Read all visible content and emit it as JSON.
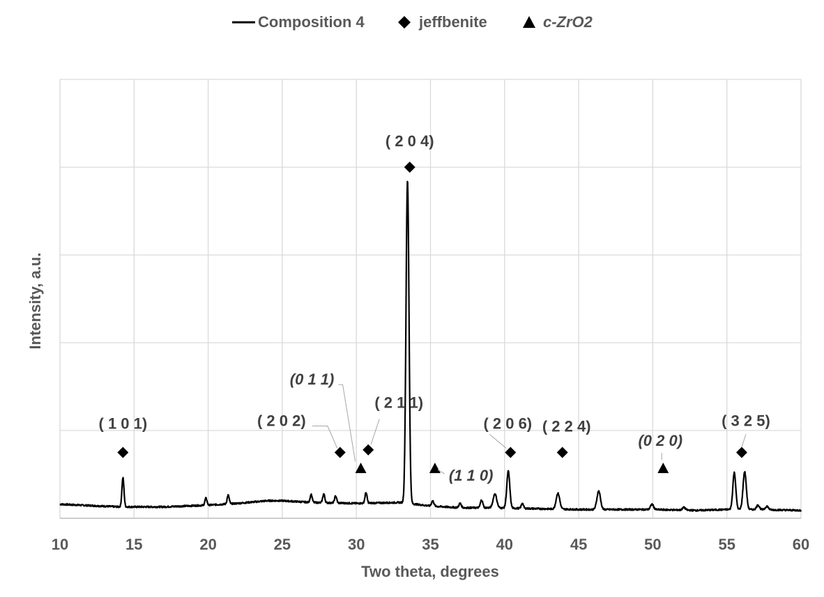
{
  "chart_data": {
    "type": "line",
    "xlabel": "Two theta, degrees",
    "ylabel": "Intensity, a.u.",
    "xlim": [
      10,
      60
    ],
    "ylim": [
      0,
      5
    ],
    "x_ticks": [
      10,
      15,
      20,
      25,
      30,
      35,
      40,
      45,
      50,
      55,
      60
    ],
    "y_tick_labels_shown": false,
    "grid": true,
    "legend_position": "top",
    "legend": [
      {
        "label": "Composition 4",
        "marker": "line"
      },
      {
        "label": "jeffbenite",
        "marker": "diamond"
      },
      {
        "label": "c-ZrO2",
        "marker": "triangle",
        "italic": true
      }
    ],
    "series": [
      {
        "name": "Composition 4",
        "color": "#000000",
        "baseline": [
          [
            10,
            0.16
          ],
          [
            14,
            0.13
          ],
          [
            17,
            0.13
          ],
          [
            20,
            0.15
          ],
          [
            22,
            0.17
          ],
          [
            24,
            0.2
          ],
          [
            25,
            0.2
          ],
          [
            27,
            0.18
          ],
          [
            30,
            0.17
          ],
          [
            33,
            0.18
          ],
          [
            35,
            0.14
          ],
          [
            37,
            0.12
          ],
          [
            39,
            0.12
          ],
          [
            42,
            0.11
          ],
          [
            45,
            0.1
          ],
          [
            47,
            0.1
          ],
          [
            50,
            0.1
          ],
          [
            53,
            0.09
          ],
          [
            55,
            0.1
          ],
          [
            57,
            0.1
          ],
          [
            60,
            0.09
          ]
        ],
        "peaks": [
          {
            "x": 14.25,
            "height": 0.33,
            "width": 0.07
          },
          {
            "x": 19.85,
            "height": 0.08,
            "width": 0.07
          },
          {
            "x": 21.35,
            "height": 0.1,
            "width": 0.07
          },
          {
            "x": 26.95,
            "height": 0.09,
            "width": 0.07
          },
          {
            "x": 27.8,
            "height": 0.1,
            "width": 0.07
          },
          {
            "x": 28.6,
            "height": 0.08,
            "width": 0.07
          },
          {
            "x": 30.65,
            "height": 0.12,
            "width": 0.07
          },
          {
            "x": 33.45,
            "height": 3.68,
            "width": 0.1
          },
          {
            "x": 35.15,
            "height": 0.06,
            "width": 0.08
          },
          {
            "x": 37.0,
            "height": 0.05,
            "width": 0.08
          },
          {
            "x": 38.45,
            "height": 0.09,
            "width": 0.08
          },
          {
            "x": 39.35,
            "height": 0.16,
            "width": 0.12
          },
          {
            "x": 40.25,
            "height": 0.42,
            "width": 0.1
          },
          {
            "x": 41.2,
            "height": 0.06,
            "width": 0.07
          },
          {
            "x": 43.6,
            "height": 0.18,
            "width": 0.12
          },
          {
            "x": 46.35,
            "height": 0.21,
            "width": 0.12
          },
          {
            "x": 49.95,
            "height": 0.06,
            "width": 0.1
          },
          {
            "x": 52.1,
            "height": 0.03,
            "width": 0.1
          },
          {
            "x": 55.5,
            "height": 0.42,
            "width": 0.1
          },
          {
            "x": 56.2,
            "height": 0.43,
            "width": 0.11
          },
          {
            "x": 57.1,
            "height": 0.05,
            "width": 0.1
          },
          {
            "x": 57.7,
            "height": 0.04,
            "width": 0.1
          }
        ]
      }
    ],
    "annotations": [
      {
        "label": "( 1 0 1)",
        "phase": "jeffbenite",
        "x": 14.25,
        "y": 0.75,
        "italic": false
      },
      {
        "label": "( 2 0 2)",
        "phase": "jeffbenite",
        "x": 28.9,
        "y": 0.75,
        "italic": false
      },
      {
        "label": "( 2 1 1)",
        "phase": "jeffbenite",
        "x": 30.8,
        "y": 0.78,
        "italic": false
      },
      {
        "label": "(0 1 1)",
        "phase": "c-ZrO2",
        "x": 30.3,
        "y": 0.57,
        "italic": true
      },
      {
        "label": "( 2 0 4)",
        "phase": "jeffbenite",
        "x": 33.6,
        "y": 4.0,
        "italic": false
      },
      {
        "label": "(1 1 0)",
        "phase": "c-ZrO2",
        "x": 35.3,
        "y": 0.57,
        "italic": true
      },
      {
        "label": "( 2 0 6)",
        "phase": "jeffbenite",
        "x": 40.4,
        "y": 0.75,
        "italic": false
      },
      {
        "label": "( 2 2 4)",
        "phase": "jeffbenite",
        "x": 43.9,
        "y": 0.75,
        "italic": false
      },
      {
        "label": "(0 2 0)",
        "phase": "c-ZrO2",
        "x": 50.7,
        "y": 0.57,
        "italic": true
      },
      {
        "label": "( 3 2 5)",
        "phase": "jeffbenite",
        "x": 56.0,
        "y": 0.75,
        "italic": false
      }
    ]
  }
}
